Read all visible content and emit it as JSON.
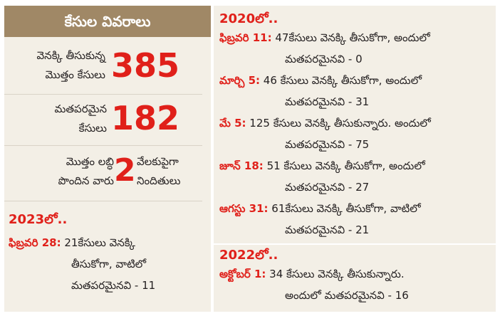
{
  "header": {
    "title": "కేసుల వివరాలు"
  },
  "stats": [
    {
      "label_line1": "వెనక్కి తీసుకున్న",
      "label_line2": "మొత్తం కేసులు",
      "value": "385"
    },
    {
      "label_line1": "మతపరమైన",
      "label_line2": "కేసులు",
      "value": "182"
    },
    {
      "label_line1": "మొత్తం లబ్ధి",
      "label_line2": "పొందిన వారు",
      "value": "2",
      "suffix_line1": "వేలకుపైగా",
      "suffix_line2": "నిందితులు"
    }
  ],
  "section_2023": {
    "heading": "2023లో..",
    "entries": [
      {
        "date": "ఫిబ్రవరి 28:",
        "line1": " 21కేసులు వెనక్కి",
        "line2": "తీసుకోగా, వాటిలో",
        "line3": "మతపరమైనవి - 11"
      }
    ]
  },
  "section_2020": {
    "heading": "2020లో..",
    "entries": [
      {
        "date": "ఫిబ్రవరి 11:",
        "line1": " 47కేసులు వెనక్కి తీసుకోగా, అందులో",
        "line2": "మతపరమైనవి - 0"
      },
      {
        "date": "మార్చి 5:",
        "line1": " 46 కేసులు వెనక్కి తీసుకోగా, అందులో",
        "line2": "మతపరమైనవి - 31"
      },
      {
        "date": "మే 5:",
        "line1": " 125 కేసులు వెనక్కి తీసుకున్నారు. అందులో",
        "line2": "మతపరమైనవి - 75"
      },
      {
        "date": "జూన్ 18:",
        "line1": " 51 కేసులు వెనక్కి తీసుకోగా, అందులో",
        "line2": "మతపరమైనవి - 27"
      },
      {
        "date": "ఆగస్టు 31:",
        "line1": " 61కేసులు వెనక్కి తీసుకోగా, వాటిలో",
        "line2": "మతపరమైనవి - 21"
      }
    ]
  },
  "section_2022": {
    "heading": "2022లో..",
    "entries": [
      {
        "date": "అక్టోబర్ 1:",
        "line1": " 34 కేసులు వెనక్కి తీసుకున్నారు.",
        "line2": "అందులో మతపరమైనవి - 16"
      }
    ]
  },
  "colors": {
    "accent": "#e0201a",
    "header_bg": "#a08866",
    "panel_bg": "#f3efe6"
  }
}
